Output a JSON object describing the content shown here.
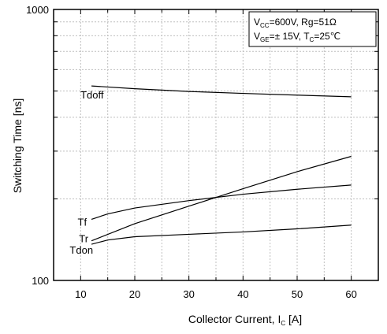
{
  "chart_data": {
    "type": "line",
    "xlabel": "Collector Current, I",
    "xlabel_sub": "C",
    "xlabel_unit": " [A]",
    "ylabel": "Switching Time [ns]",
    "x_scale": "linear",
    "y_scale": "log",
    "xlim": [
      5,
      65
    ],
    "ylim": [
      100,
      1000
    ],
    "x_ticks": [
      10,
      20,
      30,
      40,
      50,
      60
    ],
    "x_tick_labels": [
      "10",
      "20",
      "30",
      "40",
      "50",
      "60"
    ],
    "y_ticks": [
      100,
      1000
    ],
    "y_tick_labels": [
      "100",
      "1000"
    ],
    "grid": true,
    "legend_position": "top-right",
    "conditions": {
      "line1": {
        "v": "V",
        "v_sub": "CC",
        "rest": "=600V, Rg=51Ω"
      },
      "line2": {
        "v": "V",
        "v_sub": "GE",
        "mid": "=±  15V, T",
        "t_sub": "C",
        "rest": "=25℃"
      }
    },
    "series": [
      {
        "name": "Tdoff",
        "x": [
          12,
          20,
          30,
          40,
          50,
          60
        ],
        "y": [
          522,
          510,
          498,
          490,
          483,
          476
        ]
      },
      {
        "name": "Tf",
        "x": [
          12,
          15,
          20,
          30,
          40,
          50,
          60
        ],
        "y": [
          168,
          176,
          185,
          197,
          208,
          217,
          225
        ]
      },
      {
        "name": "Tr",
        "x": [
          12,
          20,
          30,
          40,
          50,
          60
        ],
        "y": [
          140,
          162,
          188,
          218,
          252,
          287
        ]
      },
      {
        "name": "Tdon",
        "x": [
          12,
          15,
          20,
          30,
          40,
          50,
          60
        ],
        "y": [
          136,
          141,
          145,
          148,
          151,
          155,
          160
        ]
      }
    ]
  }
}
